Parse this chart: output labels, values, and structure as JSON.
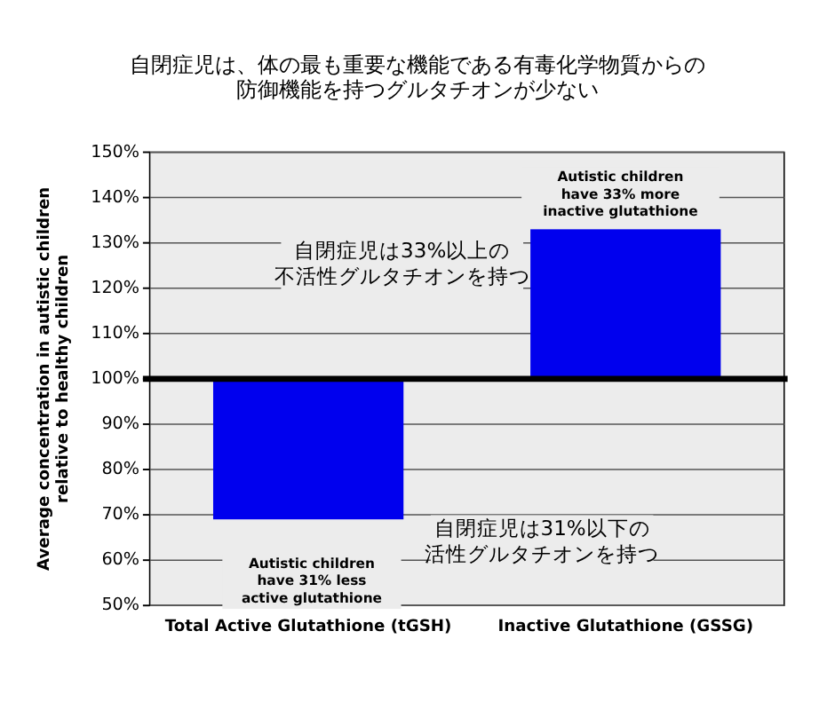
{
  "chart_data": {
    "type": "bar",
    "title": "自閉症児は、体の最も重要な機能である有毒化学物質からの防御機能を持つグルタチオンが少ない",
    "ylabel": "Average concentration in autistic children\nrelative to healthy children",
    "categories": [
      "Total Active Glutathione (tGSH)",
      "Inactive Glutathione (GSSG)"
    ],
    "values": [
      -31,
      33
    ],
    "base": [
      100,
      100
    ],
    "color": "#0000ee",
    "ylim": [
      50,
      150
    ],
    "yticks": [
      {
        "value": 50,
        "label": "50%"
      },
      {
        "value": 60,
        "label": "60%"
      },
      {
        "value": 70,
        "label": "70%"
      },
      {
        "value": 80,
        "label": "80%"
      },
      {
        "value": 90,
        "label": "90%"
      },
      {
        "value": 100,
        "label": "100%"
      },
      {
        "value": 110,
        "label": "110%"
      },
      {
        "value": 120,
        "label": "120%"
      },
      {
        "value": 130,
        "label": "130%"
      },
      {
        "value": 140,
        "label": "140%"
      },
      {
        "value": 150,
        "label": "150%"
      }
    ],
    "grid": "y",
    "ref_lines": [
      {
        "axis": "y",
        "value": 100,
        "color": "#000000"
      }
    ],
    "annotations": [
      "Autistic children\nhave 31% less\nactive glutathione",
      "Autistic children\nhave 33% more\ninactive glutathione",
      "自閉症児は33%以上の不活性グルタチオンを持つ",
      "自閉症児は31%以下の活性グルタチオンを持つ"
    ]
  }
}
